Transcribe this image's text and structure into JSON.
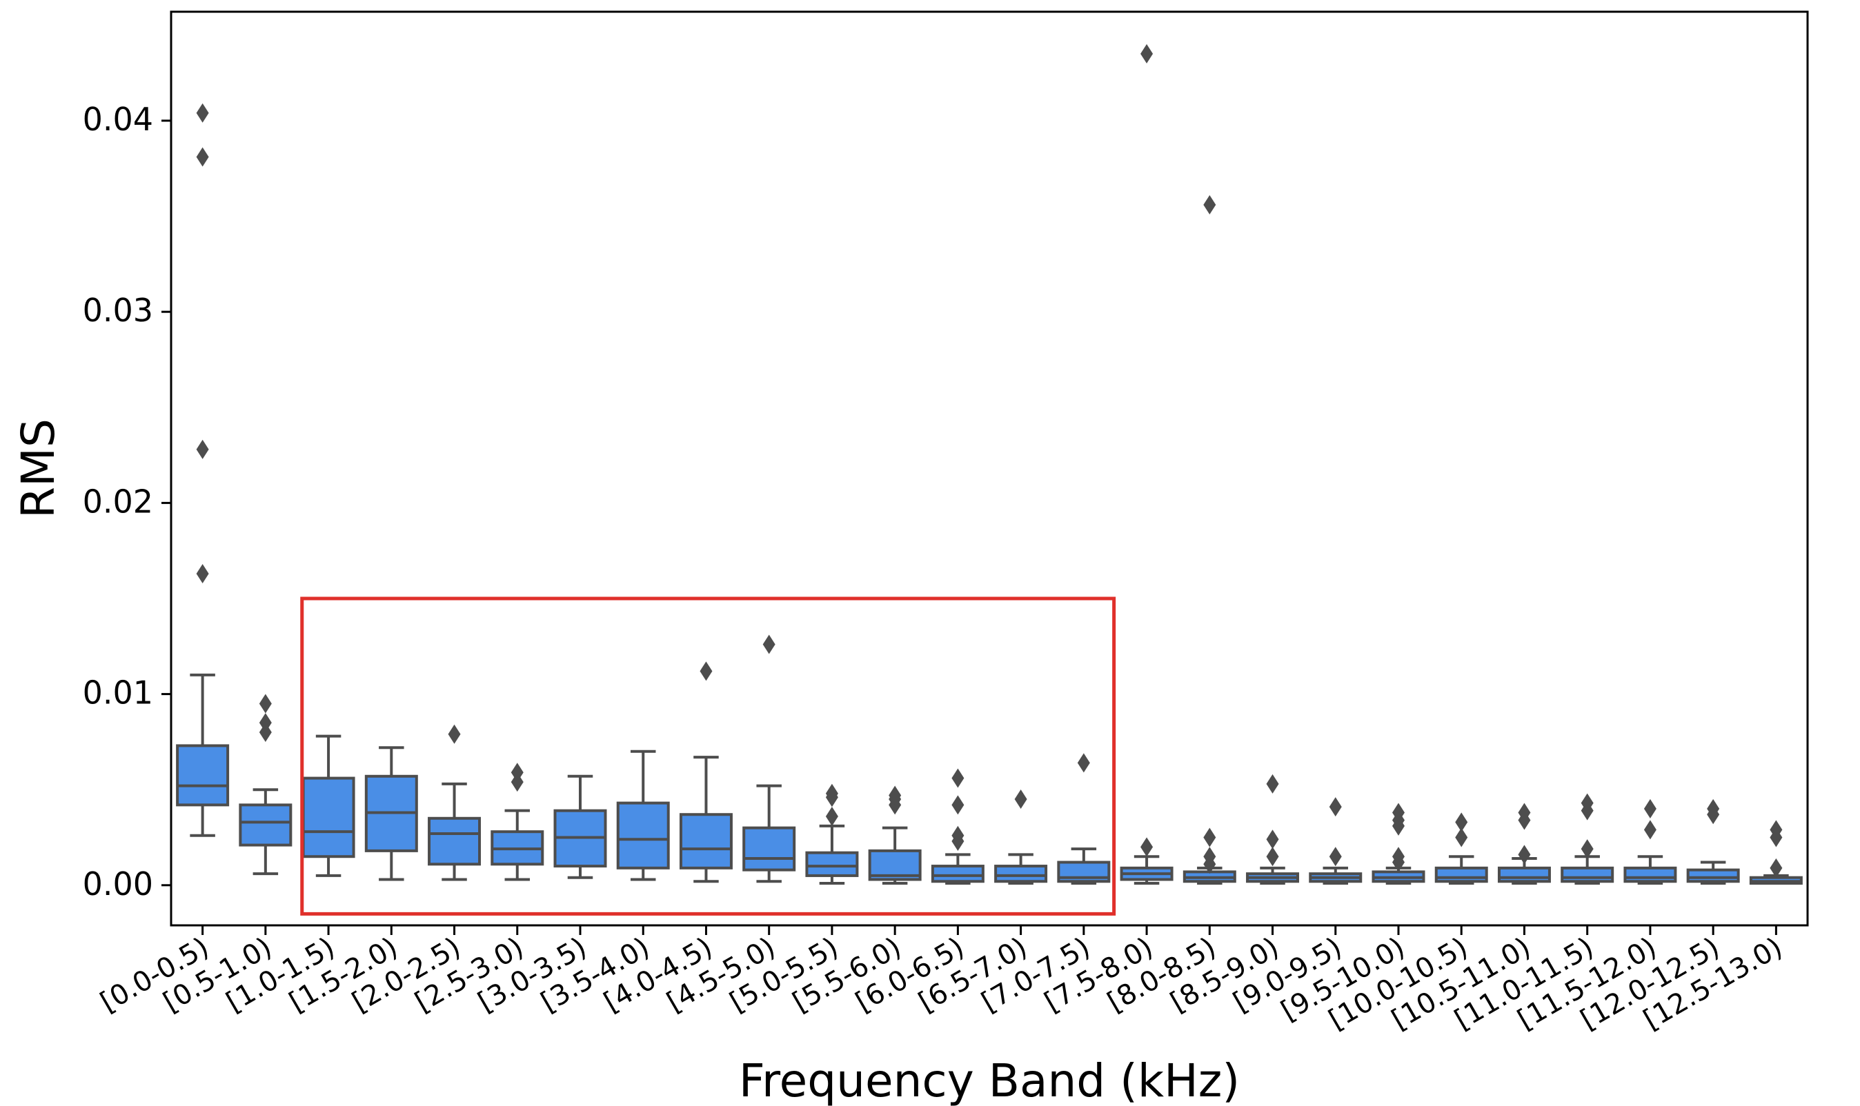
{
  "chart_data": {
    "type": "boxplot",
    "title": "",
    "xlabel": "Frequency Band (kHz)",
    "ylabel": "RMS",
    "ylim": [
      -0.0021,
      0.0457
    ],
    "yticks": [
      0.0,
      0.01,
      0.02,
      0.03,
      0.04
    ],
    "ytick_labels": [
      "0.00",
      "0.01",
      "0.02",
      "0.03",
      "0.04"
    ],
    "colors": {
      "box_fill": "#4a8ee6",
      "box_line": "#4d4d4d",
      "highlight": "#e0302b"
    },
    "highlight_range": {
      "from_category": "[1.0-1.5)",
      "to_category": "[7.0-7.5)",
      "y_low": -0.0015,
      "y_high": 0.015
    },
    "categories": [
      "[0.0-0.5)",
      "[0.5-1.0)",
      "[1.0-1.5)",
      "[1.5-2.0)",
      "[2.0-2.5)",
      "[2.5-3.0)",
      "[3.0-3.5)",
      "[3.5-4.0)",
      "[4.0-4.5)",
      "[4.5-5.0)",
      "[5.0-5.5)",
      "[5.5-6.0)",
      "[6.0-6.5)",
      "[6.5-7.0)",
      "[7.0-7.5)",
      "[7.5-8.0)",
      "[8.0-8.5)",
      "[8.5-9.0)",
      "[9.0-9.5)",
      "[9.5-10.0)",
      "[10.0-10.5)",
      "[10.5-11.0)",
      "[11.0-11.5)",
      "[11.5-12.0)",
      "[12.0-12.5)",
      "[12.5-13.0)"
    ],
    "boxes": [
      {
        "whislo": 0.0026,
        "q1": 0.0042,
        "med": 0.0052,
        "q3": 0.0073,
        "whishi": 0.011,
        "fliers": [
          0.0163,
          0.0228,
          0.0381,
          0.0404
        ]
      },
      {
        "whislo": 0.0006,
        "q1": 0.0021,
        "med": 0.0033,
        "q3": 0.0042,
        "whishi": 0.005,
        "fliers": [
          0.008,
          0.0085,
          0.0095
        ]
      },
      {
        "whislo": 0.0005,
        "q1": 0.0015,
        "med": 0.0028,
        "q3": 0.0056,
        "whishi": 0.0078,
        "fliers": []
      },
      {
        "whislo": 0.0003,
        "q1": 0.0018,
        "med": 0.0038,
        "q3": 0.0057,
        "whishi": 0.0072,
        "fliers": []
      },
      {
        "whislo": 0.0003,
        "q1": 0.0011,
        "med": 0.0027,
        "q3": 0.0035,
        "whishi": 0.0053,
        "fliers": [
          0.0079
        ]
      },
      {
        "whislo": 0.0003,
        "q1": 0.0011,
        "med": 0.0019,
        "q3": 0.0028,
        "whishi": 0.0039,
        "fliers": [
          0.0054,
          0.0059
        ]
      },
      {
        "whislo": 0.0004,
        "q1": 0.001,
        "med": 0.0025,
        "q3": 0.0039,
        "whishi": 0.0057,
        "fliers": []
      },
      {
        "whislo": 0.0003,
        "q1": 0.0009,
        "med": 0.0024,
        "q3": 0.0043,
        "whishi": 0.007,
        "fliers": []
      },
      {
        "whislo": 0.0002,
        "q1": 0.0009,
        "med": 0.0019,
        "q3": 0.0037,
        "whishi": 0.0067,
        "fliers": [
          0.0112
        ]
      },
      {
        "whislo": 0.0002,
        "q1": 0.0008,
        "med": 0.0014,
        "q3": 0.003,
        "whishi": 0.0052,
        "fliers": [
          0.0126
        ]
      },
      {
        "whislo": 0.0001,
        "q1": 0.0005,
        "med": 0.001,
        "q3": 0.0017,
        "whishi": 0.0031,
        "fliers": [
          0.0036,
          0.0046,
          0.0048
        ]
      },
      {
        "whislo": 0.0001,
        "q1": 0.0003,
        "med": 0.0005,
        "q3": 0.0018,
        "whishi": 0.003,
        "fliers": [
          0.0042,
          0.0045,
          0.0047
        ]
      },
      {
        "whislo": 0.0001,
        "q1": 0.0002,
        "med": 0.0005,
        "q3": 0.001,
        "whishi": 0.0016,
        "fliers": [
          0.0023,
          0.0026,
          0.0042,
          0.0056
        ]
      },
      {
        "whislo": 0.0001,
        "q1": 0.0002,
        "med": 0.0005,
        "q3": 0.001,
        "whishi": 0.0016,
        "fliers": [
          0.0045
        ]
      },
      {
        "whislo": 0.0001,
        "q1": 0.0002,
        "med": 0.0004,
        "q3": 0.0012,
        "whishi": 0.0019,
        "fliers": [
          0.0064
        ]
      },
      {
        "whislo": 0.0001,
        "q1": 0.0003,
        "med": 0.0006,
        "q3": 0.0009,
        "whishi": 0.0015,
        "fliers": [
          0.002,
          0.0435
        ]
      },
      {
        "whislo": 0.0001,
        "q1": 0.0002,
        "med": 0.0004,
        "q3": 0.0007,
        "whishi": 0.0009,
        "fliers": [
          0.0011,
          0.0015,
          0.0025,
          0.0356
        ]
      },
      {
        "whislo": 0.0001,
        "q1": 0.0002,
        "med": 0.0004,
        "q3": 0.0006,
        "whishi": 0.0009,
        "fliers": [
          0.0015,
          0.0024,
          0.0053
        ]
      },
      {
        "whislo": 0.0001,
        "q1": 0.0002,
        "med": 0.0004,
        "q3": 0.0006,
        "whishi": 0.0009,
        "fliers": [
          0.0015,
          0.0041
        ]
      },
      {
        "whislo": 0.0001,
        "q1": 0.0002,
        "med": 0.0004,
        "q3": 0.0007,
        "whishi": 0.0009,
        "fliers": [
          0.0012,
          0.0015,
          0.0031,
          0.0034,
          0.0038
        ]
      },
      {
        "whislo": 0.0001,
        "q1": 0.0002,
        "med": 0.0004,
        "q3": 0.0009,
        "whishi": 0.0015,
        "fliers": [
          0.0025,
          0.0033
        ]
      },
      {
        "whislo": 0.0001,
        "q1": 0.0002,
        "med": 0.0004,
        "q3": 0.0009,
        "whishi": 0.0014,
        "fliers": [
          0.0016,
          0.0034,
          0.0038
        ]
      },
      {
        "whislo": 0.0001,
        "q1": 0.0002,
        "med": 0.0004,
        "q3": 0.0009,
        "whishi": 0.0015,
        "fliers": [
          0.0019,
          0.0039,
          0.0043
        ]
      },
      {
        "whislo": 0.0001,
        "q1": 0.0002,
        "med": 0.0004,
        "q3": 0.0009,
        "whishi": 0.0015,
        "fliers": [
          0.0029,
          0.004
        ]
      },
      {
        "whislo": 0.0001,
        "q1": 0.0002,
        "med": 0.0004,
        "q3": 0.0008,
        "whishi": 0.0012,
        "fliers": [
          0.0037,
          0.004
        ]
      },
      {
        "whislo": 0.0001,
        "q1": 0.0001,
        "med": 0.0002,
        "q3": 0.0004,
        "whishi": 0.0005,
        "fliers": [
          0.0009,
          0.0025,
          0.0029
        ]
      }
    ]
  }
}
